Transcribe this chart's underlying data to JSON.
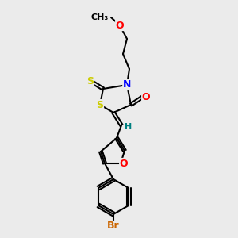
{
  "bg_color": "#ebebeb",
  "bond_color": "#000000",
  "line_width": 1.5,
  "atom_colors": {
    "S": "#cccc00",
    "N": "#0000ff",
    "O": "#ff0000",
    "Br": "#cc6600",
    "H": "#008080",
    "C": "#000000"
  },
  "font_size": 9,
  "font_size_small": 8
}
